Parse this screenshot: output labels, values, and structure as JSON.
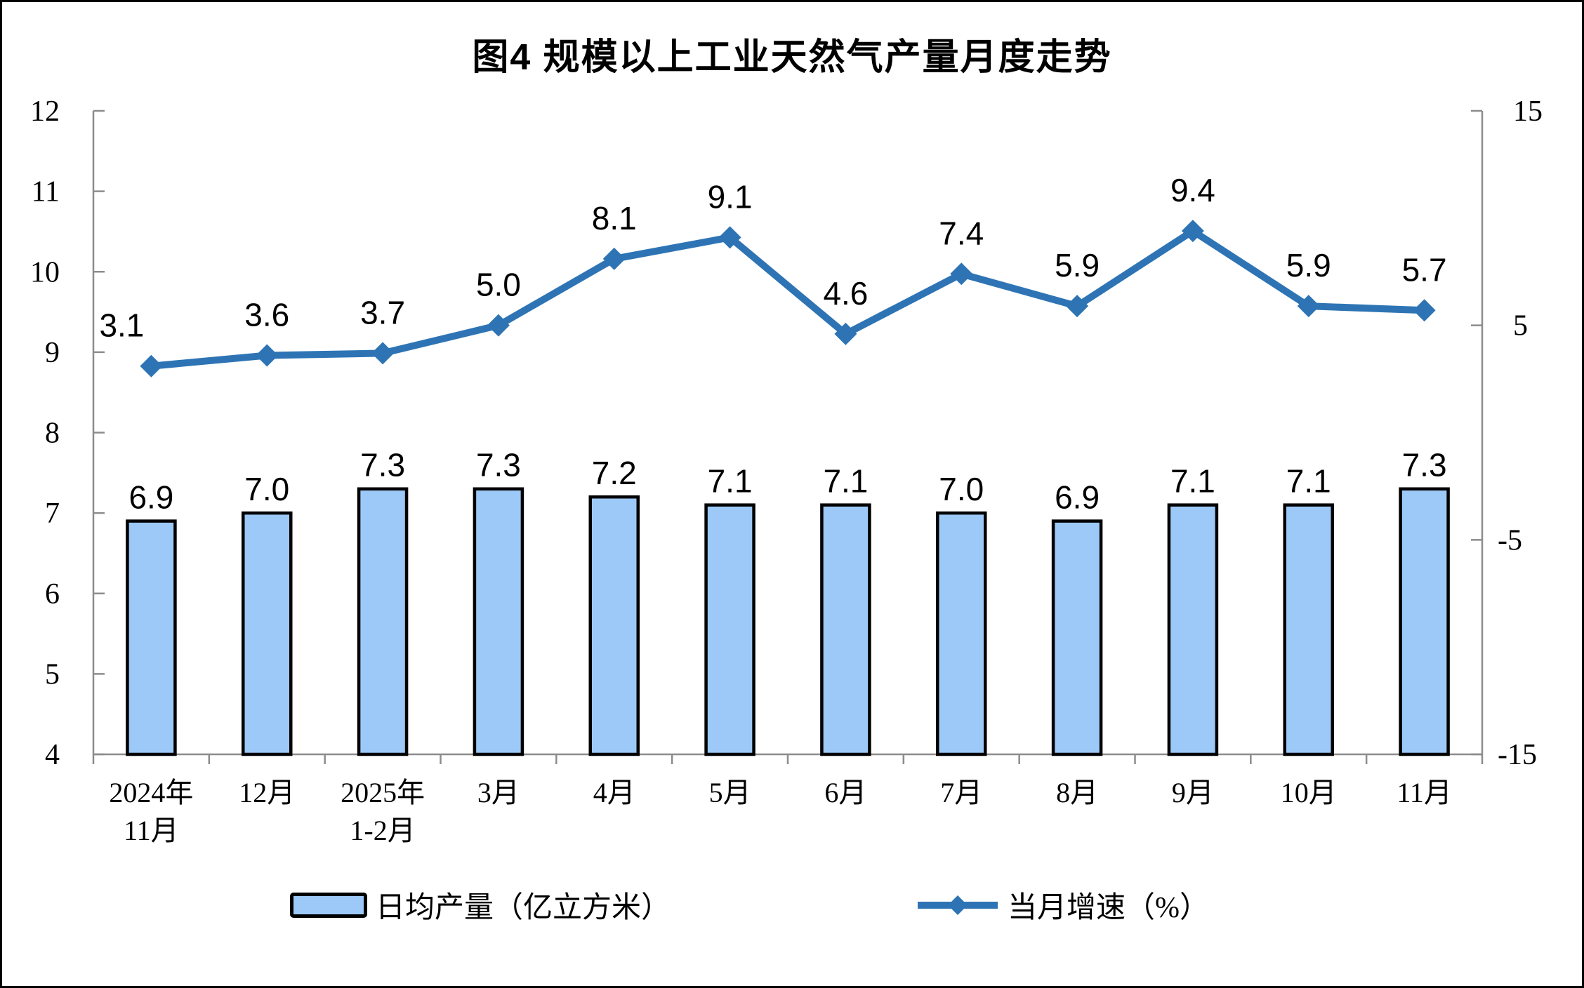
{
  "title": "图4 规模以上工业天然气产量月度走势",
  "legend": {
    "bar_label": "日均产量（亿立方米）",
    "line_label": "当月增速（%）"
  },
  "colors": {
    "bar_fill": "#9CC9F8",
    "bar_stroke": "#000000",
    "line": "#2E74B5",
    "axis": "#8C8C8C",
    "text": "#000000",
    "background": "#FFFFFF"
  },
  "chart_data": {
    "type": "combo-bar-line",
    "title": "图4 规模以上工业天然气产量月度走势",
    "grid": false,
    "legend_position": "bottom",
    "categories": [
      [
        "2024年",
        "11月"
      ],
      [
        "12月"
      ],
      [
        "2025年",
        "1-2月"
      ],
      [
        "3月"
      ],
      [
        "4月"
      ],
      [
        "5月"
      ],
      [
        "6月"
      ],
      [
        "7月"
      ],
      [
        "8月"
      ],
      [
        "9月"
      ],
      [
        "10月"
      ],
      [
        "11月"
      ]
    ],
    "series": [
      {
        "name": "日均产量（亿立方米）",
        "type": "bar",
        "axis": "left",
        "values": [
          6.9,
          7.0,
          7.3,
          7.3,
          7.2,
          7.1,
          7.1,
          7.0,
          6.9,
          7.1,
          7.1,
          7.3
        ]
      },
      {
        "name": "当月增速（%）",
        "type": "line",
        "axis": "right",
        "values": [
          3.1,
          3.6,
          3.7,
          5.0,
          8.1,
          9.1,
          4.6,
          7.4,
          5.9,
          9.4,
          5.9,
          5.7
        ]
      }
    ],
    "axes": {
      "left": {
        "min": 4,
        "max": 12,
        "tick_values": [
          4,
          5,
          6,
          7,
          8,
          9,
          10,
          11,
          12
        ],
        "tick_labels": [
          "4",
          "5",
          "6",
          "7",
          "8",
          "9",
          "10",
          "11",
          "12"
        ]
      },
      "right": {
        "min": -15,
        "max": 15,
        "tick_values": [
          -15,
          -5,
          5,
          15
        ],
        "tick_labels": [
          "-15",
          "-5",
          "5",
          "15"
        ]
      }
    }
  }
}
